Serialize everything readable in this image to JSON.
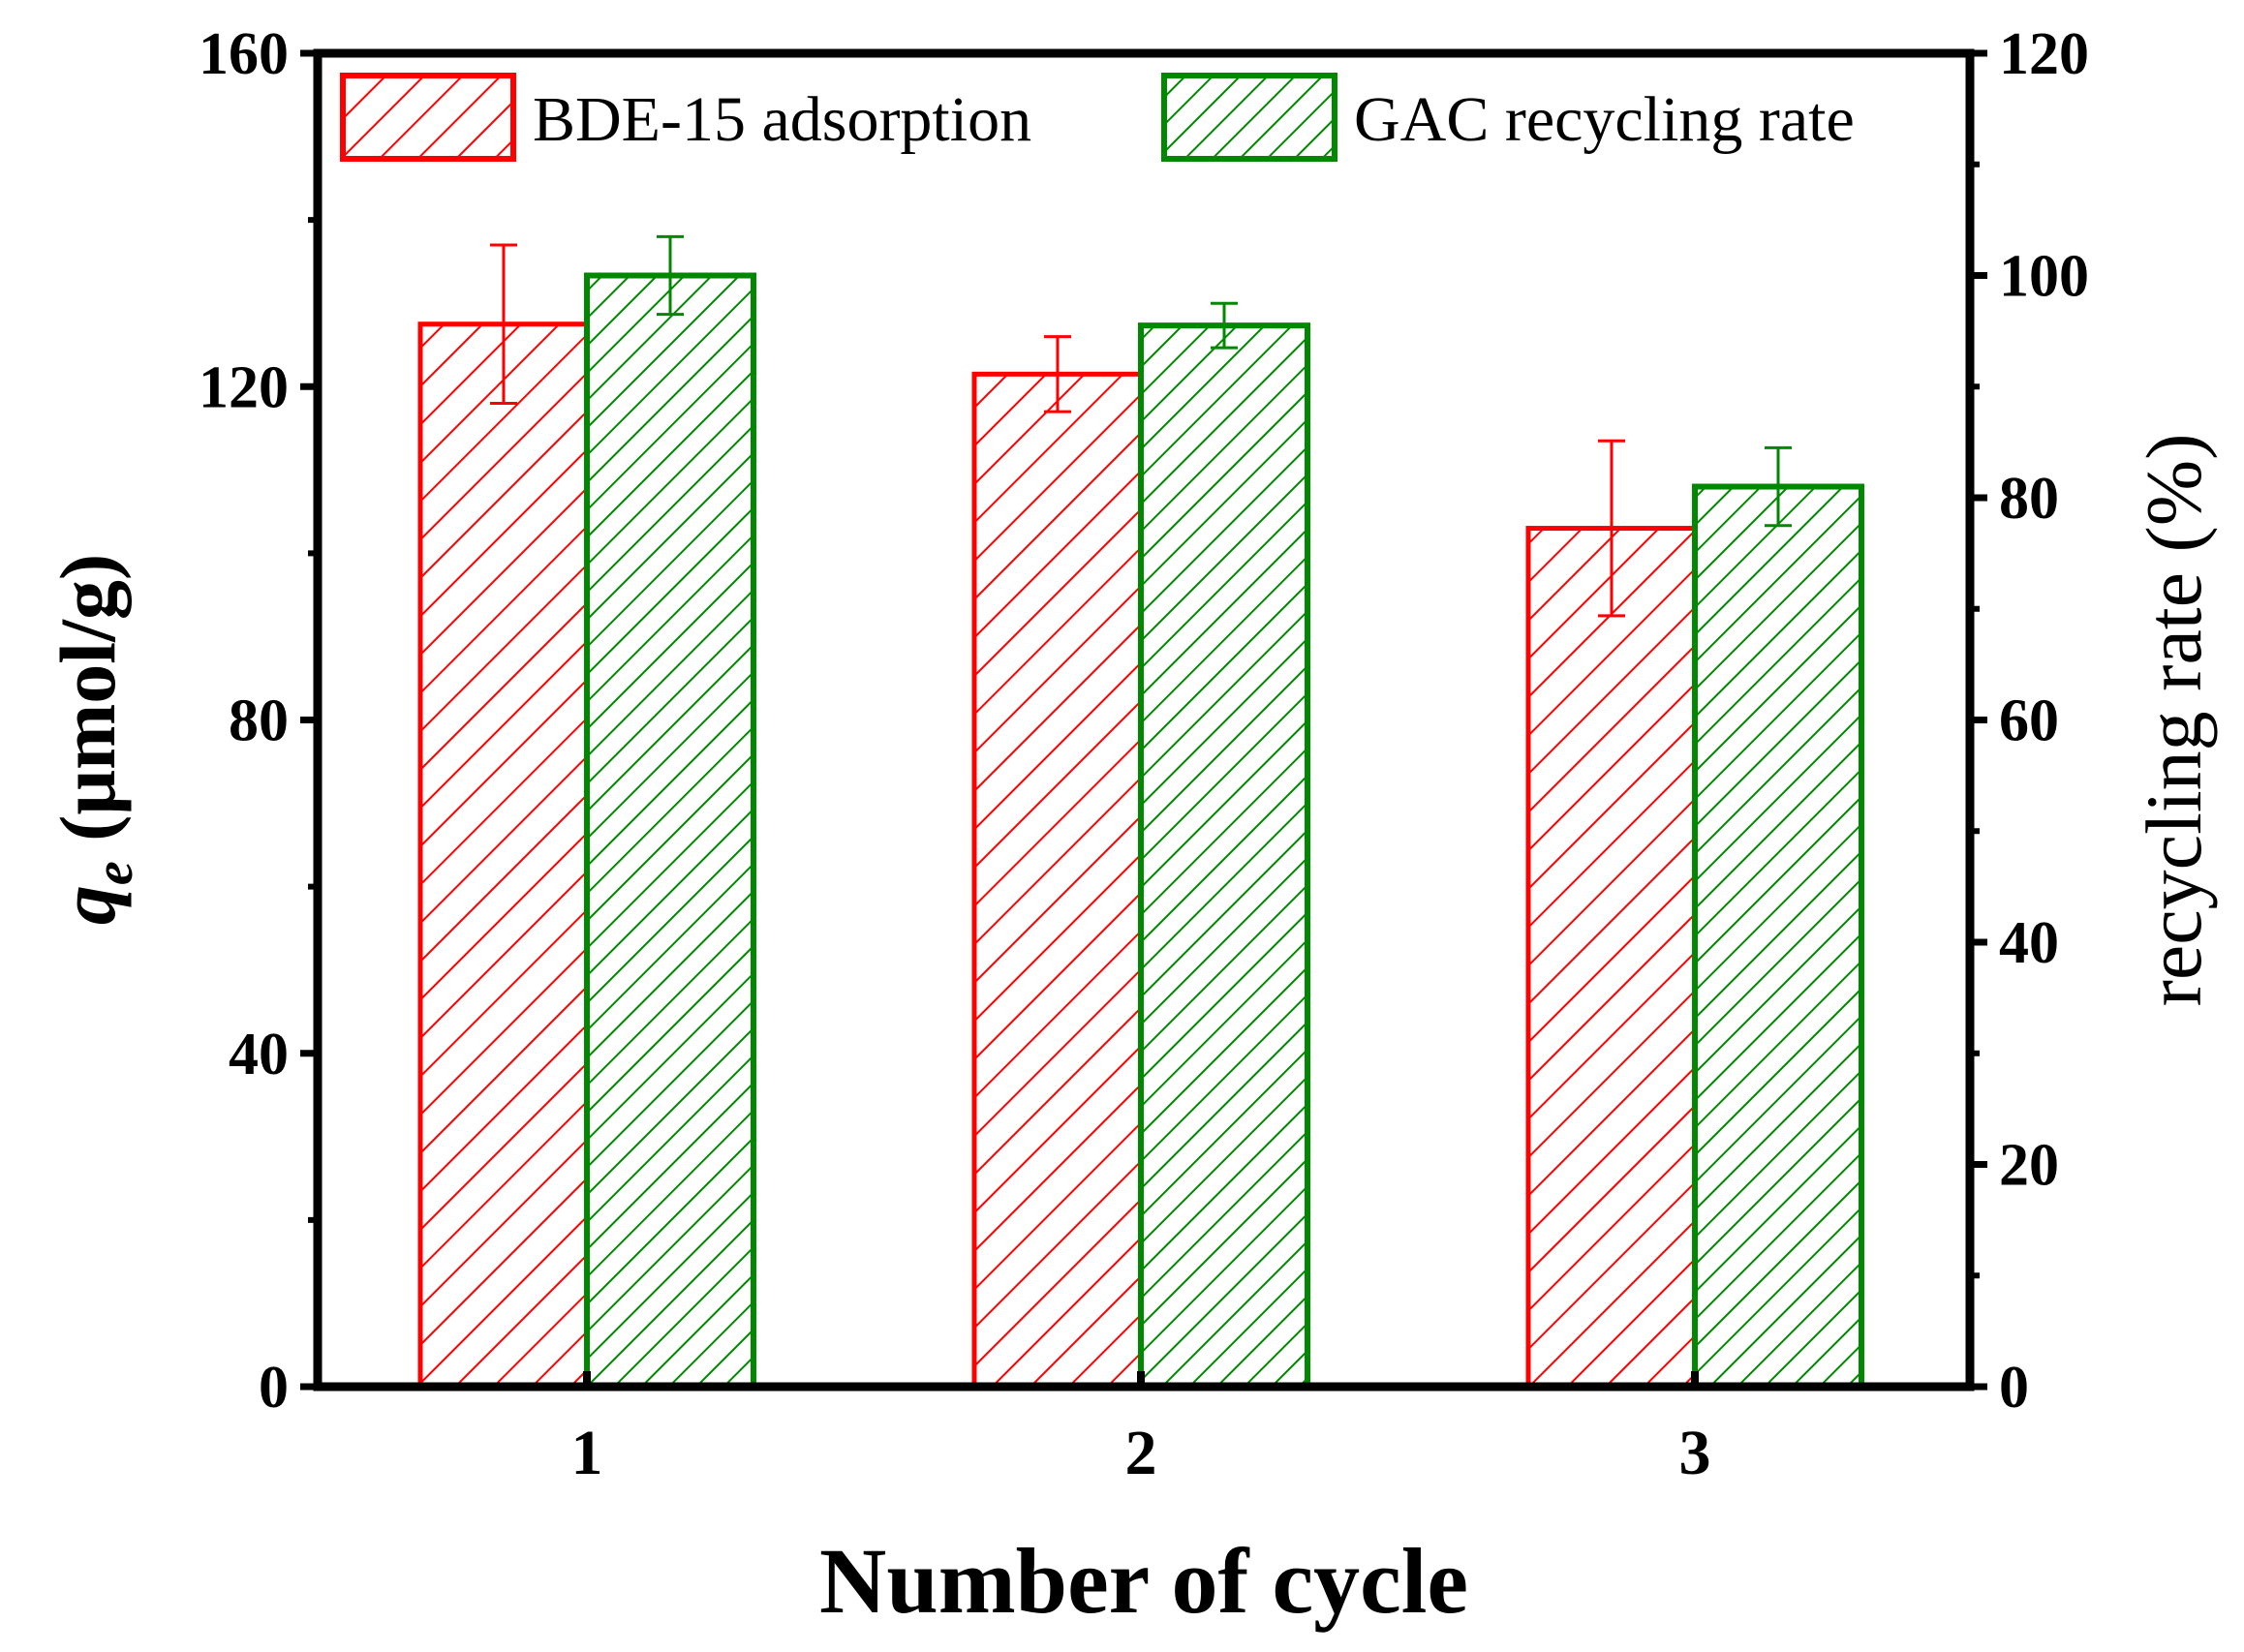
{
  "chart_data": {
    "type": "bar",
    "categories": [
      "1",
      "2",
      "3"
    ],
    "xlabel": "Number of cycle",
    "ylabel": {
      "symbol": "q",
      "subscript": "e",
      "unit": " (μmol/g)"
    },
    "ylabel_right": "recycling rate (%)",
    "ylim": [
      0,
      160
    ],
    "ylim_right": [
      0,
      120
    ],
    "yticks": [
      0,
      40,
      80,
      120,
      160
    ],
    "yticks_right": [
      0,
      20,
      40,
      60,
      80,
      100,
      120
    ],
    "series": [
      {
        "name": "BDE-15 adsorption",
        "axis": "left",
        "color": "#ff0000",
        "values": [
          127.5,
          121.5,
          103
        ],
        "errors": [
          9.5,
          4.5,
          10.5
        ]
      },
      {
        "name": "GAC recycling rate",
        "axis": "right",
        "color": "#008800",
        "values": [
          100,
          95.5,
          81
        ],
        "errors": [
          3.5,
          2,
          3.5
        ]
      }
    ],
    "legend": "top"
  }
}
